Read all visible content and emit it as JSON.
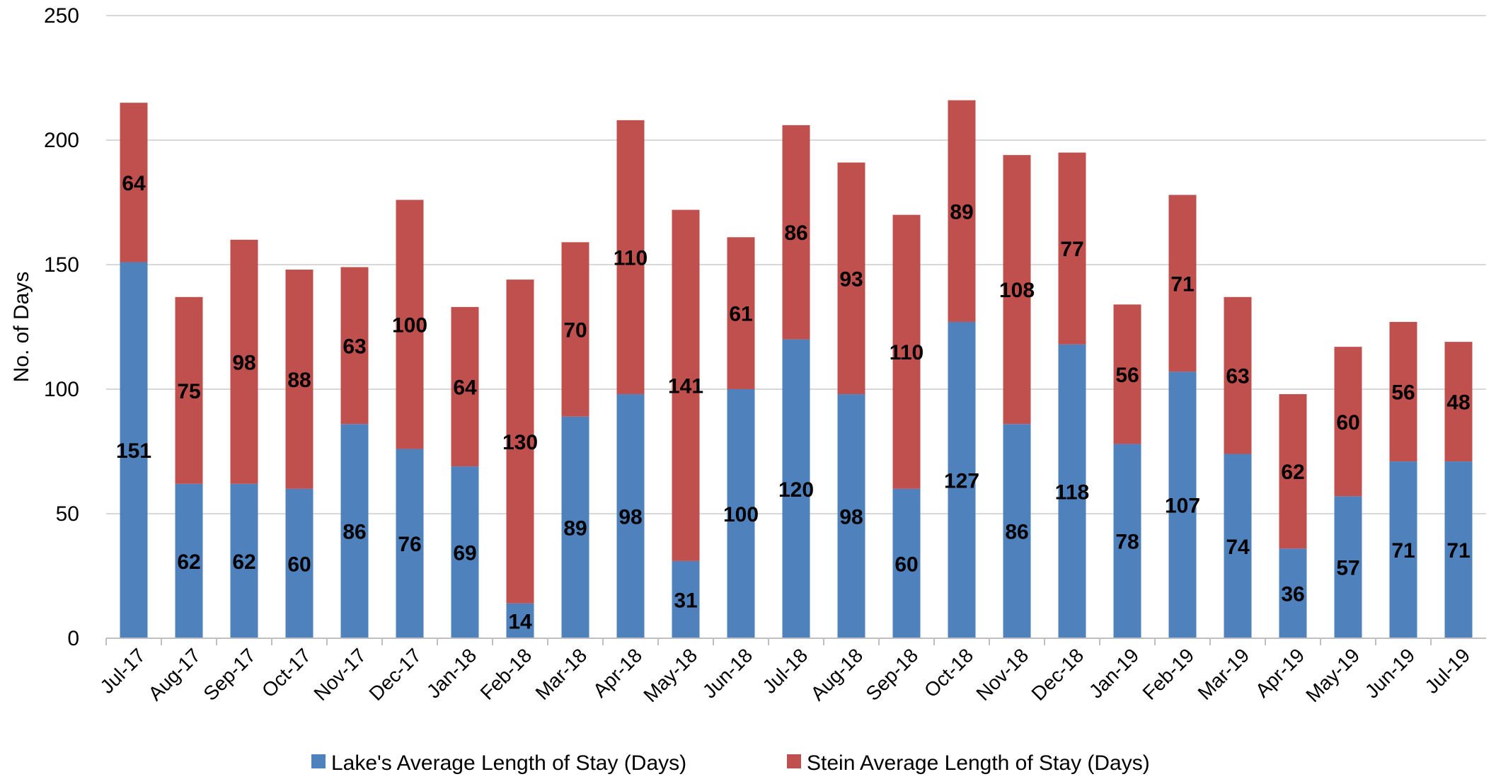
{
  "chart_data": {
    "type": "bar",
    "stacked": true,
    "categories": [
      "Jul-17",
      "Aug-17",
      "Sep-17",
      "Oct-17",
      "Nov-17",
      "Dec-17",
      "Jan-18",
      "Feb-18",
      "Mar-18",
      "Apr-18",
      "May-18",
      "Jun-18",
      "Jul-18",
      "Aug-18",
      "Sep-18",
      "Oct-18",
      "Nov-18",
      "Dec-18",
      "Jan-19",
      "Feb-19",
      "Mar-19",
      "Apr-19",
      "May-19",
      "Jun-19",
      "Jul-19"
    ],
    "series": [
      {
        "name": "Lake's Average Length of Stay (Days)",
        "color": "#4f81bd",
        "values": [
          151,
          62,
          62,
          60,
          86,
          76,
          69,
          14,
          89,
          98,
          31,
          100,
          120,
          98,
          60,
          127,
          86,
          118,
          78,
          107,
          74,
          36,
          57,
          71,
          71
        ]
      },
      {
        "name": "Stein Average Length of Stay (Days)",
        "color": "#c0504d",
        "values": [
          64,
          75,
          98,
          88,
          63,
          100,
          64,
          130,
          70,
          110,
          141,
          61,
          86,
          93,
          110,
          89,
          108,
          77,
          56,
          71,
          63,
          62,
          60,
          56,
          48
        ]
      }
    ],
    "title": "",
    "xlabel": "",
    "ylabel": "No. of Days",
    "ylim": [
      0,
      250
    ],
    "yticks": [
      0,
      50,
      100,
      150,
      200,
      250
    ],
    "grid": true,
    "legend_position": "bottom"
  }
}
